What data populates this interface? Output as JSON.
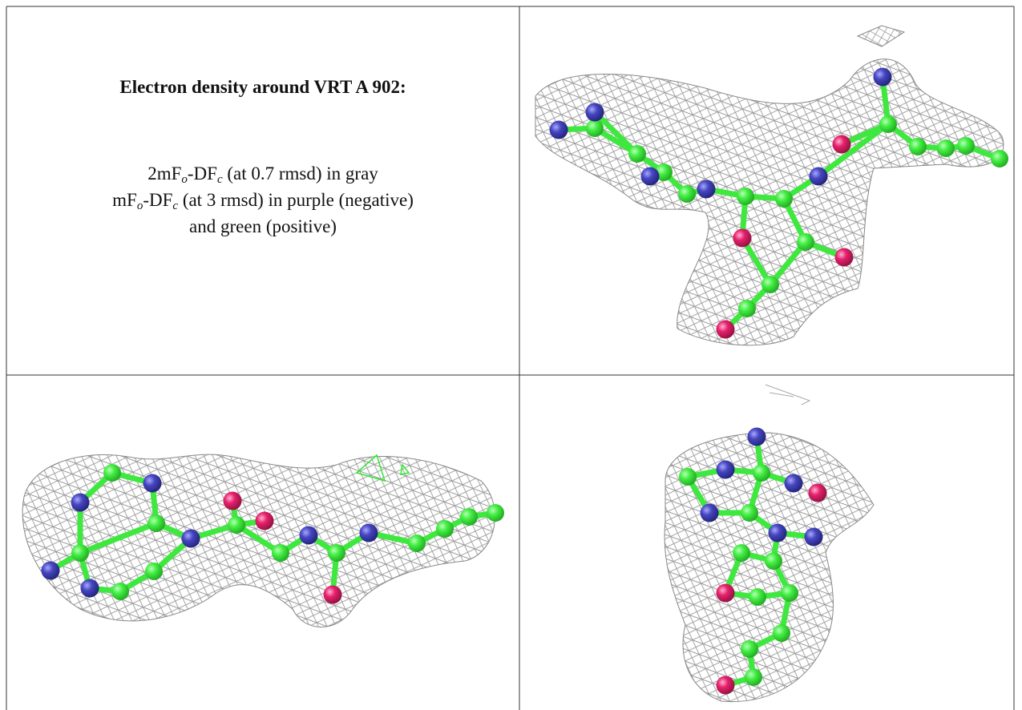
{
  "caption": {
    "title": "Electron density around VRT A 902:",
    "line1": {
      "a": "2mF",
      "sub1": "o",
      "b": "-DF",
      "sub2": "c",
      "rest": " (at 0.7 rmsd) in gray"
    },
    "line2": {
      "a": "mF",
      "sub1": "o",
      "b": "-DF",
      "sub2": "c",
      "rest": " (at 3 rmsd) in purple (negative)"
    },
    "line3": "and green (positive)"
  }
}
